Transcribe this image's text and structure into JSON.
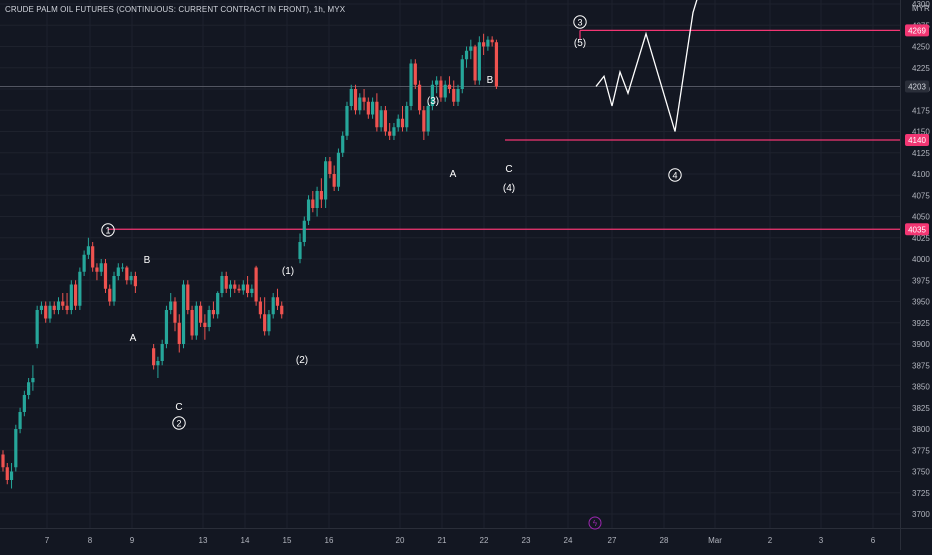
{
  "chart_data": {
    "type": "candlestick",
    "title": "CRUDE PALM OIL FUTURES (CONTINUOUS: CURRENT CONTRACT IN FRONT), 1h, MYX",
    "currency": "MYR",
    "y_range": [
      3690,
      4330
    ],
    "y_ticks": [
      3700,
      3725,
      3750,
      3775,
      3800,
      3825,
      3850,
      3875,
      3900,
      3925,
      3950,
      3975,
      4000,
      4025,
      4050,
      4075,
      4100,
      4125,
      4150,
      4175,
      4200,
      4225,
      4250,
      4275,
      4300
    ],
    "x_ticks": [
      "7",
      "8",
      "9",
      "13",
      "14",
      "15",
      "16",
      "20",
      "21",
      "22",
      "23",
      "24",
      "27",
      "28",
      "Mar",
      "2",
      "3",
      "6"
    ],
    "price_labels": [
      "4269",
      "4203",
      "4140",
      "4035"
    ],
    "levels": [
      {
        "price": 4269,
        "color": "#f23673"
      },
      {
        "price": 4140,
        "color": "#f23673"
      },
      {
        "price": 4035,
        "color": "#f23673"
      },
      {
        "price": 4203,
        "color": "#5d606b"
      }
    ],
    "candles": [
      [
        3770,
        3775,
        3750,
        3755
      ],
      [
        3755,
        3760,
        3735,
        3740
      ],
      [
        3740,
        3760,
        3730,
        3750
      ],
      [
        3755,
        3805,
        3750,
        3800
      ],
      [
        3800,
        3825,
        3795,
        3820
      ],
      [
        3820,
        3845,
        3815,
        3840
      ],
      [
        3840,
        3860,
        3835,
        3855
      ],
      [
        3855,
        3875,
        3845,
        3860
      ],
      [
        3900,
        3945,
        3895,
        3940
      ],
      [
        3940,
        3950,
        3935,
        3945
      ],
      [
        3945,
        3950,
        3925,
        3930
      ],
      [
        3930,
        3950,
        3925,
        3945
      ],
      [
        3945,
        3950,
        3935,
        3940
      ],
      [
        3940,
        3955,
        3935,
        3950
      ],
      [
        3950,
        3960,
        3940,
        3945
      ],
      [
        3945,
        3960,
        3935,
        3940
      ],
      [
        3940,
        3975,
        3935,
        3970
      ],
      [
        3970,
        3975,
        3940,
        3945
      ],
      [
        3945,
        3990,
        3940,
        3985
      ],
      [
        3985,
        4010,
        3980,
        4005
      ],
      [
        4005,
        4025,
        4000,
        4015
      ],
      [
        4015,
        4020,
        3985,
        3990
      ],
      [
        3990,
        3995,
        3975,
        3985
      ],
      [
        3985,
        4000,
        3980,
        3995
      ],
      [
        3995,
        4000,
        3960,
        3965
      ],
      [
        3965,
        3970,
        3945,
        3950
      ],
      [
        3950,
        3985,
        3945,
        3980
      ],
      [
        3980,
        3995,
        3975,
        3990
      ],
      [
        3990,
        3995,
        3985,
        3990
      ],
      [
        3990,
        3992,
        3970,
        3975
      ],
      [
        3975,
        3985,
        3970,
        3980
      ],
      [
        3980,
        3985,
        3960,
        3968
      ],
      [
        3895,
        3900,
        3870,
        3875
      ],
      [
        3875,
        3885,
        3860,
        3880
      ],
      [
        3880,
        3905,
        3875,
        3900
      ],
      [
        3900,
        3945,
        3895,
        3940
      ],
      [
        3940,
        3960,
        3935,
        3950
      ],
      [
        3950,
        3955,
        3915,
        3925
      ],
      [
        3925,
        3935,
        3890,
        3900
      ],
      [
        3900,
        3975,
        3895,
        3970
      ],
      [
        3970,
        3975,
        3935,
        3940
      ],
      [
        3940,
        3945,
        3905,
        3910
      ],
      [
        3910,
        3950,
        3905,
        3945
      ],
      [
        3945,
        3950,
        3920,
        3925
      ],
      [
        3925,
        3935,
        3905,
        3920
      ],
      [
        3920,
        3945,
        3915,
        3940
      ],
      [
        3940,
        3950,
        3930,
        3935
      ],
      [
        3935,
        3962,
        3930,
        3960
      ],
      [
        3960,
        3985,
        3955,
        3980
      ],
      [
        3980,
        3985,
        3960,
        3965
      ],
      [
        3965,
        3975,
        3955,
        3970
      ],
      [
        3970,
        3975,
        3960,
        3965
      ],
      [
        3965,
        3970,
        3960,
        3963
      ],
      [
        3963,
        3975,
        3958,
        3970
      ],
      [
        3970,
        3980,
        3955,
        3960
      ],
      [
        3960,
        3970,
        3955,
        3965
      ],
      [
        3990,
        3992,
        3945,
        3950
      ],
      [
        3950,
        3955,
        3930,
        3935
      ],
      [
        3935,
        3955,
        3910,
        3915
      ],
      [
        3915,
        3940,
        3910,
        3935
      ],
      [
        3935,
        3960,
        3930,
        3955
      ],
      [
        3955,
        3965,
        3940,
        3945
      ],
      [
        3945,
        3950,
        3930,
        3935
      ],
      [
        4000,
        4030,
        3995,
        4020
      ],
      [
        4020,
        4050,
        4015,
        4045
      ],
      [
        4045,
        4075,
        4040,
        4070
      ],
      [
        4070,
        4080,
        4055,
        4060
      ],
      [
        4060,
        4085,
        4050,
        4080
      ],
      [
        4080,
        4095,
        4060,
        4070
      ],
      [
        4070,
        4120,
        4060,
        4115
      ],
      [
        4115,
        4120,
        4095,
        4100
      ],
      [
        4100,
        4110,
        4080,
        4085
      ],
      [
        4085,
        4130,
        4080,
        4125
      ],
      [
        4125,
        4150,
        4120,
        4145
      ],
      [
        4145,
        4185,
        4140,
        4180
      ],
      [
        4180,
        4205,
        4175,
        4200
      ],
      [
        4200,
        4205,
        4170,
        4175
      ],
      [
        4175,
        4195,
        4170,
        4190
      ],
      [
        4190,
        4200,
        4175,
        4185
      ],
      [
        4185,
        4190,
        4165,
        4170
      ],
      [
        4170,
        4190,
        4165,
        4185
      ],
      [
        4185,
        4195,
        4150,
        4155
      ],
      [
        4155,
        4180,
        4150,
        4175
      ],
      [
        4175,
        4180,
        4145,
        4150
      ],
      [
        4150,
        4160,
        4140,
        4145
      ],
      [
        4145,
        4160,
        4140,
        4155
      ],
      [
        4155,
        4170,
        4150,
        4165
      ],
      [
        4165,
        4180,
        4150,
        4155
      ],
      [
        4155,
        4185,
        4150,
        4180
      ],
      [
        4180,
        4235,
        4175,
        4230
      ],
      [
        4230,
        4235,
        4200,
        4205
      ],
      [
        4205,
        4210,
        4170,
        4175
      ],
      [
        4175,
        4180,
        4140,
        4150
      ],
      [
        4150,
        4185,
        4145,
        4180
      ],
      [
        4180,
        4210,
        4175,
        4205
      ],
      [
        4205,
        4215,
        4195,
        4210
      ],
      [
        4210,
        4215,
        4185,
        4190
      ],
      [
        4190,
        4210,
        4185,
        4205
      ],
      [
        4205,
        4215,
        4195,
        4200
      ],
      [
        4200,
        4210,
        4180,
        4185
      ],
      [
        4185,
        4205,
        4180,
        4200
      ],
      [
        4200,
        4240,
        4195,
        4235
      ],
      [
        4235,
        4250,
        4225,
        4245
      ],
      [
        4245,
        4258,
        4235,
        4250
      ],
      [
        4250,
        4252,
        4205,
        4210
      ],
      [
        4210,
        4262,
        4205,
        4255
      ],
      [
        4255,
        4265,
        4240,
        4250
      ],
      [
        4250,
        4262,
        4245,
        4258
      ],
      [
        4258,
        4262,
        4250,
        4255
      ],
      [
        4255,
        4258,
        4200,
        4203
      ]
    ],
    "projection": [
      [
        4203,
        4215
      ],
      [
        4225,
        4180
      ],
      [
        4205,
        4220
      ],
      [
        4225,
        4195
      ],
      [
        4245,
        4265
      ],
      [
        4265,
        4150
      ],
      [
        4170,
        4290
      ],
      [
        4290,
        4340
      ]
    ],
    "annotations": [
      {
        "text": "①",
        "kind": "circled"
      },
      {
        "text": "B",
        "kind": "letter"
      },
      {
        "text": "A",
        "kind": "letter"
      },
      {
        "text": "C",
        "kind": "letter"
      },
      {
        "text": "②",
        "kind": "circled"
      },
      {
        "text": "(1)",
        "kind": "letter"
      },
      {
        "text": "(2)",
        "kind": "letter"
      },
      {
        "text": "(3)",
        "kind": "letter"
      },
      {
        "text": "A",
        "kind": "letter"
      },
      {
        "text": "B",
        "kind": "letter"
      },
      {
        "text": "C",
        "kind": "letter"
      },
      {
        "text": "(4)",
        "kind": "letter"
      },
      {
        "text": "③",
        "kind": "circled"
      },
      {
        "text": "(5)",
        "kind": "letter"
      },
      {
        "text": "④",
        "kind": "circled"
      }
    ],
    "colors": {
      "bg": "#131722",
      "up": "#26a69a",
      "down": "#ef5350",
      "grid": "#1e222d",
      "axis_text": "#b2b5be",
      "level": "#f23673",
      "projection": "#ffffff",
      "event": "#9c27b0"
    },
    "event_marker": "ϟ",
    "grid": true
  }
}
